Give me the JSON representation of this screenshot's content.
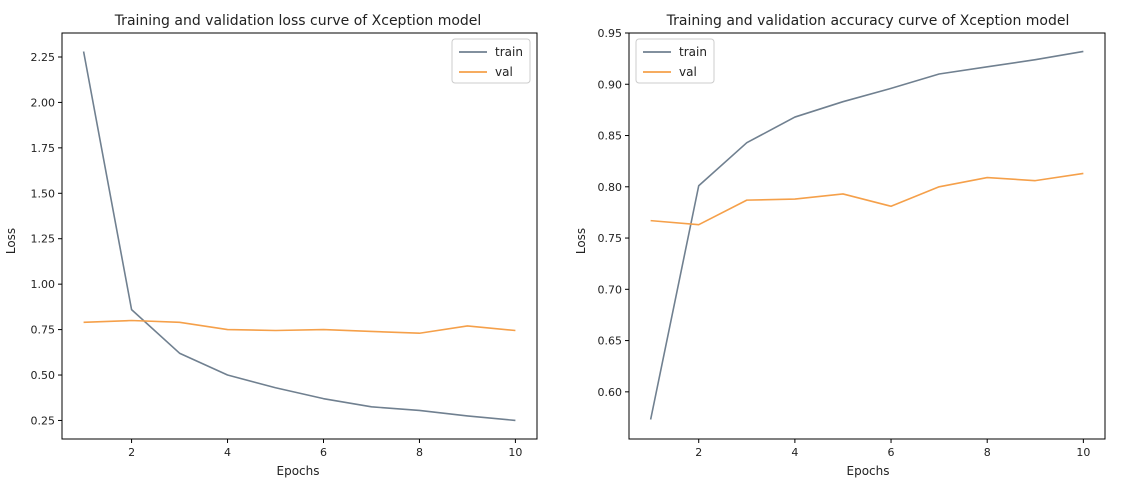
{
  "chart_data": [
    {
      "type": "line",
      "title": "Training and validation loss curve of Xception model",
      "xlabel": "Epochs",
      "ylabel": "Loss",
      "xlim": [
        0.55,
        10.45
      ],
      "ylim": [
        0.148,
        2.382
      ],
      "x_ticks": [
        2,
        4,
        6,
        8,
        10
      ],
      "y_ticks": [
        0.25,
        0.5,
        0.75,
        1.0,
        1.25,
        1.5,
        1.75,
        2.0,
        2.25
      ],
      "y_tick_labels": [
        "0.25",
        "0.50",
        "0.75",
        "1.00",
        "1.25",
        "1.50",
        "1.75",
        "2.00",
        "2.25"
      ],
      "grid": false,
      "legend_position": "top-right",
      "x": [
        1,
        2,
        3,
        4,
        5,
        6,
        7,
        8,
        9,
        10
      ],
      "series": [
        {
          "name": "train",
          "color": "#708090",
          "values": [
            2.28,
            0.86,
            0.62,
            0.5,
            0.43,
            0.37,
            0.325,
            0.305,
            0.275,
            0.25
          ]
        },
        {
          "name": "val",
          "color": "#f5a04a",
          "values": [
            0.79,
            0.8,
            0.79,
            0.75,
            0.745,
            0.75,
            0.74,
            0.73,
            0.77,
            0.745
          ]
        }
      ]
    },
    {
      "type": "line",
      "title": "Training and validation accuracy curve of Xception model",
      "xlabel": "Epochs",
      "ylabel": "Loss",
      "xlim": [
        0.55,
        10.45
      ],
      "ylim": [
        0.554,
        0.95
      ],
      "x_ticks": [
        2,
        4,
        6,
        8,
        10
      ],
      "y_ticks": [
        0.6,
        0.65,
        0.7,
        0.75,
        0.8,
        0.85,
        0.9,
        0.95
      ],
      "y_tick_labels": [
        "0.60",
        "0.65",
        "0.70",
        "0.75",
        "0.80",
        "0.85",
        "0.90",
        "0.95"
      ],
      "grid": false,
      "legend_position": "top-left",
      "x": [
        1,
        2,
        3,
        4,
        5,
        6,
        7,
        8,
        9,
        10
      ],
      "series": [
        {
          "name": "train",
          "color": "#708090",
          "values": [
            0.573,
            0.801,
            0.843,
            0.868,
            0.883,
            0.896,
            0.91,
            0.917,
            0.924,
            0.932
          ]
        },
        {
          "name": "val",
          "color": "#f5a04a",
          "values": [
            0.767,
            0.763,
            0.787,
            0.788,
            0.793,
            0.781,
            0.8,
            0.809,
            0.806,
            0.813
          ]
        }
      ]
    }
  ]
}
